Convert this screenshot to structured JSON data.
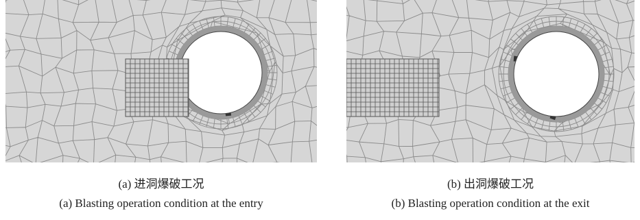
{
  "figure": {
    "panels": [
      {
        "caption_zh": "(a) 进洞爆破工况",
        "caption_en": "(a) Blasting operation condition at the entry"
      },
      {
        "caption_zh": "(b) 出洞爆破工况",
        "caption_en": "(b) Blasting operation condition at the exit"
      }
    ]
  }
}
